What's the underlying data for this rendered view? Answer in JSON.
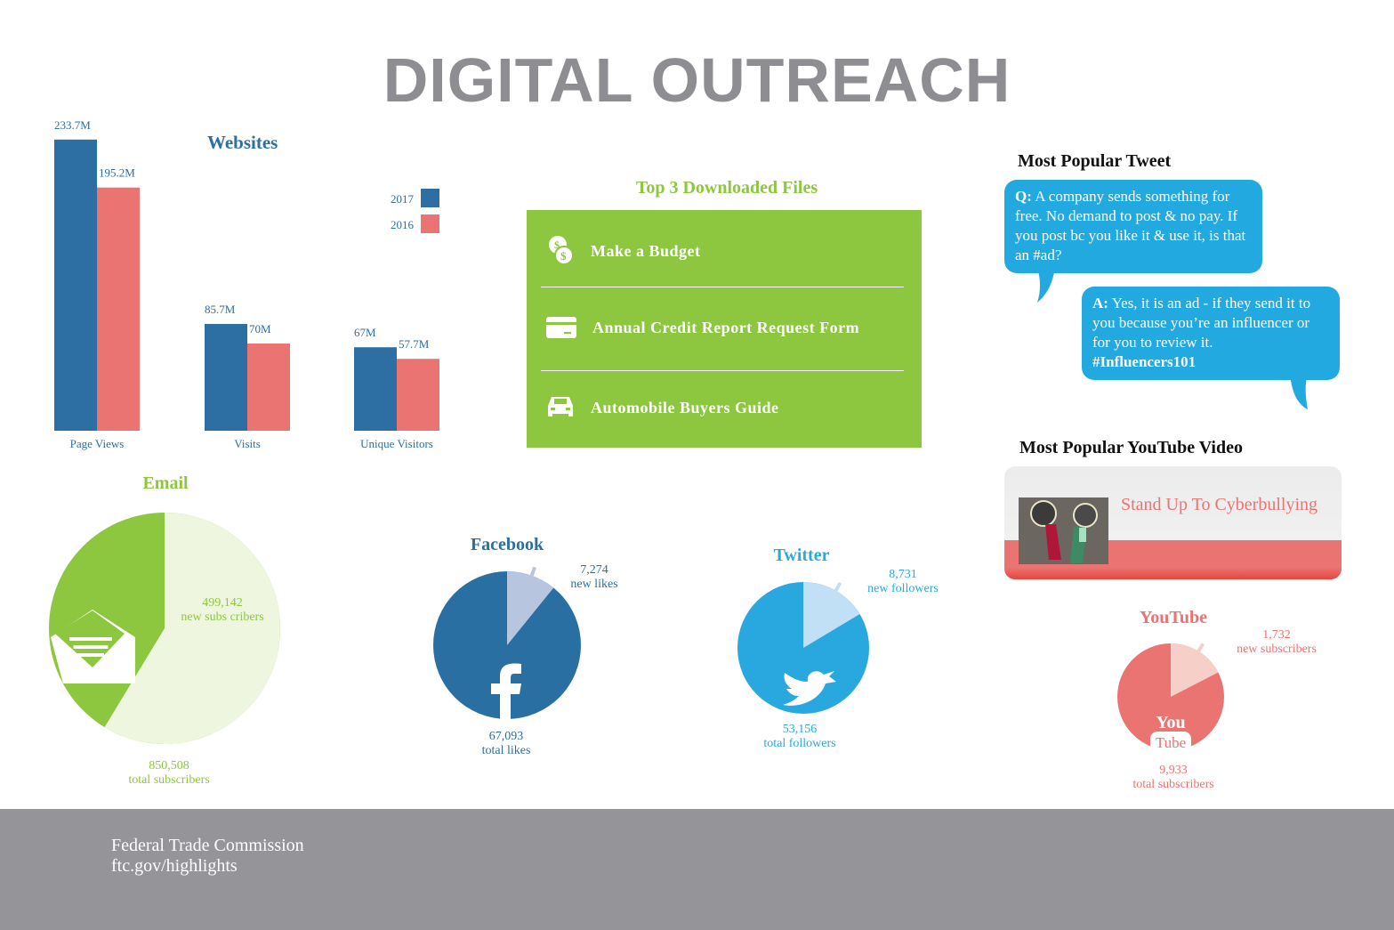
{
  "title": "DIGITAL OUTREACH",
  "colors": {
    "y2017": "#2d6fa3",
    "y2016": "#e97472",
    "green": "#8dc63f",
    "twitter": "#22a9e0",
    "footer": "#959499"
  },
  "chart_data": [
    {
      "type": "bar",
      "title": "Websites",
      "categories": [
        "Page Views",
        "Visits",
        "Unique Visitors"
      ],
      "series": [
        {
          "name": "2017",
          "values": [
            233.7,
            85.7,
            67
          ],
          "labels": [
            "233.7M",
            "85.7M",
            "67M"
          ],
          "color": "#2d6fa3"
        },
        {
          "name": "2016",
          "values": [
            195.2,
            70,
            57.7
          ],
          "labels": [
            "195.2M",
            "70M",
            "57.7M"
          ],
          "color": "#e97472"
        }
      ],
      "legend": "right",
      "grid": false,
      "unit": "M"
    },
    {
      "type": "pie",
      "title": "Email",
      "icon": "envelope-icon",
      "new": 499142,
      "total": 850508,
      "new_label": "499,142",
      "new_text": "new subs cribers",
      "total_label": "850,508",
      "total_text": "total subscribers",
      "colors": [
        "#8dc63f",
        "#eef6e0"
      ],
      "text_color": "#8dc63f"
    },
    {
      "type": "pie",
      "title": "Facebook",
      "icon": "facebook-icon",
      "new": 7274,
      "total": 67093,
      "new_label": "7,274",
      "new_text": "new likes",
      "total_label": "67,093",
      "total_text": "total likes",
      "colors": [
        "#2a6fa1",
        "#b8c5de"
      ],
      "text_color": "#2a6fa1"
    },
    {
      "type": "pie",
      "title": "Twitter",
      "icon": "twitter-bird-icon",
      "new": 8731,
      "total": 53156,
      "new_label": "8,731",
      "new_text": "new followers",
      "total_label": "53,156",
      "total_text": "total followers",
      "colors": [
        "#29a8e0",
        "#c1e0f5"
      ],
      "text_color": "#29a8e0"
    },
    {
      "type": "pie",
      "title": "YouTube",
      "icon": "youtube-icon",
      "new": 1732,
      "total": 9933,
      "new_label": "1,732",
      "new_text": "new subscribers",
      "total_label": "9,933",
      "total_text": "total subscribers",
      "colors": [
        "#e97472",
        "#f7cfc9"
      ],
      "text_color": "#e97472"
    }
  ],
  "downloads": {
    "title": "Top 3 Downloaded Files",
    "items": [
      {
        "label": "Make a Budget",
        "icon": "coins-icon"
      },
      {
        "label": "Annual Credit Report Request Form",
        "icon": "credit-card-icon"
      },
      {
        "label": "Automobile Buyers Guide",
        "icon": "car-icon"
      }
    ]
  },
  "tweet": {
    "heading": "Most Popular Tweet",
    "q_prefix": "Q:",
    "q_text": " A company sends something for free. No demand to post & no pay. If you post bc you like it & use it, is that an #ad?",
    "a_prefix": "A:",
    "a_text": " Yes, it is an ad - if they send it to you because you’re an influencer or for you to review it.",
    "hashtag": "#Influencers101"
  },
  "video": {
    "heading": "Most Popular YouTube Video",
    "title": "Stand Up To Cyberbullying"
  },
  "footer": {
    "org": "Federal Trade Commission",
    "url": "ftc.gov/highlights"
  }
}
